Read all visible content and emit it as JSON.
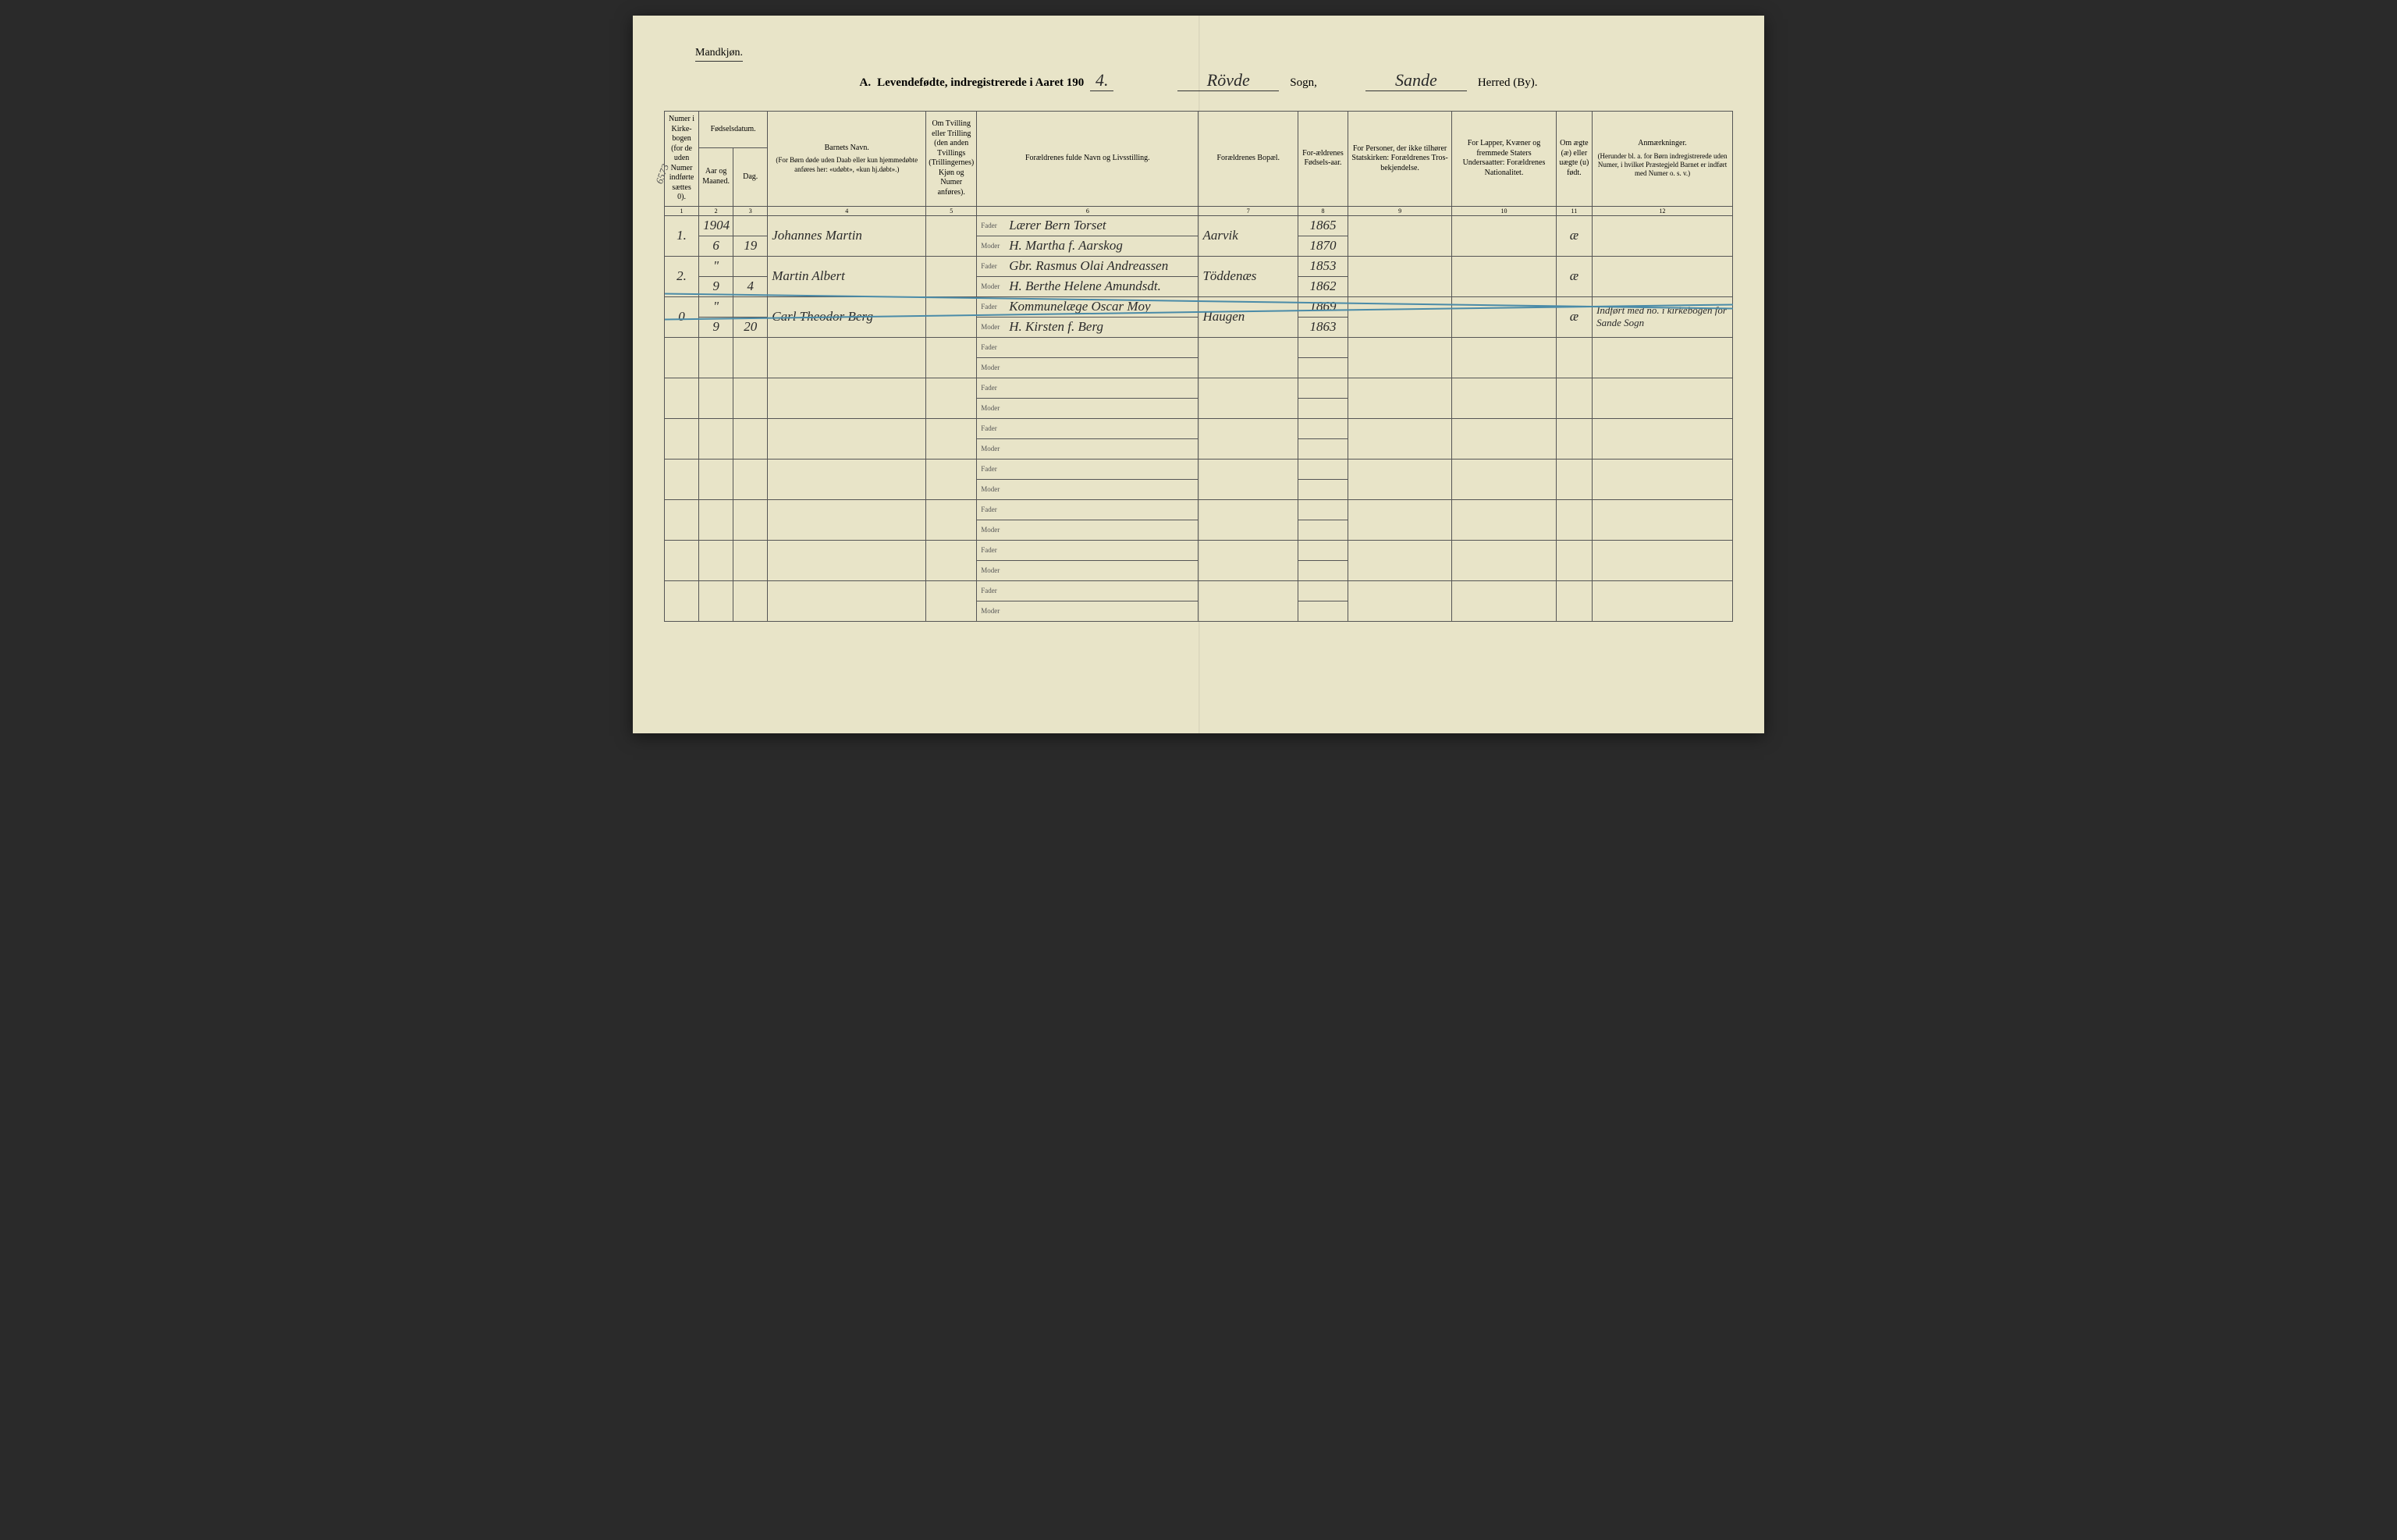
{
  "colors": {
    "page_bg": "#e8e4c8",
    "ink": "#2a2a2a",
    "border": "#555555",
    "strikeout": "#4a8ba8",
    "outer_bg": "#2a2a2a"
  },
  "header": {
    "gender_label": "Mandkjøn.",
    "title_prefix": "A.",
    "title_main": "Levendefødte, indregistrerede i Aaret 190",
    "year_suffix": "4.",
    "sogn_value": "Rövde",
    "sogn_label": "Sogn,",
    "herred_value": "Sande",
    "herred_label": "Herred (By)."
  },
  "margin_note": "6573",
  "columns": {
    "c1": "Numer i Kirke-bogen (for de uden Numer indførte sættes 0).",
    "c2_group": "Fødselsdatum.",
    "c2": "Aar og Maaned.",
    "c3": "Dag.",
    "c4_1": "Barnets Navn.",
    "c4_2": "(For Børn døde uden Daab eller kun hjemmedøbte anføres her: «udøbt», «kun hj.døbt».)",
    "c5": "Om Tvilling eller Trilling (den anden Tvillings (Trillingernes) Kjøn og Numer anføres).",
    "c6": "Forældrenes fulde Navn og Livsstilling.",
    "c7": "Forældrenes Bopæl.",
    "c8": "For-ældrenes Fødsels-aar.",
    "c9": "For Personer, der ikke tilhører Statskirken: Forældrenes Tros-bekjendelse.",
    "c10": "For Lapper, Kvæner og fremmede Staters Undersaatter: Forældrenes Nationalitet.",
    "c11": "Om ægte (æ) eller uægte (u) født.",
    "c12_1": "Anmærkninger.",
    "c12_2": "(Herunder bl. a. for Børn indregistrerede uden Numer, i hvilket Præstegjeld Barnet er indført med Numer o. s. v.)"
  },
  "col_nums": [
    "1",
    "2",
    "3",
    "4",
    "5",
    "6",
    "7",
    "8",
    "9",
    "10",
    "11",
    "12"
  ],
  "fader_label": "Fader",
  "moder_label": "Moder",
  "rows": [
    {
      "num": "1.",
      "year_month_top": "1904",
      "year_month": "6",
      "day": "19",
      "child_name": "Johannes Martin",
      "twin": "",
      "father": "Lærer Bern Torset",
      "mother": "H. Martha f. Aarskog",
      "residence": "Aarvik",
      "father_year": "1865",
      "mother_year": "1870",
      "col9": "",
      "col10": "",
      "col11": "æ",
      "col12": "",
      "struck": false
    },
    {
      "num": "2.",
      "year_month_top": "\"",
      "year_month": "9",
      "day": "4",
      "child_name": "Martin Albert",
      "twin": "",
      "father": "Gbr. Rasmus Olai Andreassen",
      "mother": "H. Berthe Helene Amundsdt.",
      "residence": "Töddenæs",
      "father_year": "1853",
      "mother_year": "1862",
      "col9": "",
      "col10": "",
      "col11": "æ",
      "col12": "",
      "struck": false
    },
    {
      "num": "0",
      "year_month_top": "\"",
      "year_month": "9",
      "day": "20",
      "child_name": "Carl Theodor Berg",
      "twin": "",
      "father": "Kommunelæge Oscar Moy",
      "mother": "H. Kirsten f. Berg",
      "residence": "Haugen",
      "father_year": "1869",
      "mother_year": "1863",
      "col9": "",
      "col10": "",
      "col11": "æ",
      "col12": "Indført med no. i kirkebogen for Sande Sogn",
      "struck": true
    }
  ],
  "empty_rows": 7
}
